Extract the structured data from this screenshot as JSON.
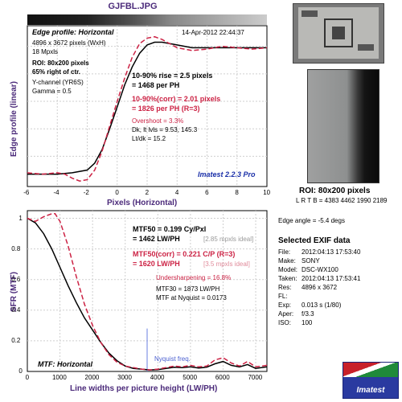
{
  "filename": "GJFBL.JPG",
  "edge": {
    "title": "Edge profile: Horizontal",
    "date": "14-Apr-2012 22:44:37",
    "pixels_info": "4896 x 3672 pixels (WxH)",
    "mpxls": "18 Mpxls",
    "roi": "ROI: 80x200 pixels",
    "roi_pos": "65% right of ctr.",
    "channel": "Y-channel  (YR6S)",
    "gamma": "Gamma = 0.5",
    "rise": "10-90% rise = 2.5 pixels",
    "rise_ph": "= 1468 per PH",
    "rise_corr": "10-90%(corr) = 2.01 pixels",
    "rise_corr_ph": "= 1826 per PH  (R=3)",
    "overshoot": "Overshoot = 3.3%",
    "dk_lt": "Dk, lt lvls = 9.53, 145.3",
    "ltdk": "Lt/dk = 15.2",
    "version": "Imatest 2.2.3 Pro",
    "ylabel": "Edge profile (linear)",
    "xlabel": "Pixels (Horizontal)"
  },
  "mtf": {
    "mtf50": "MTF50 = 0.199  Cy/Pxl",
    "mtf50_lw": "= 1462  LW/PH",
    "mtf50_ideal": "[2.85 mpxls ideal]",
    "mtf50_corr": "MTF50(corr) = 0.221  C/P  (R=3)",
    "mtf50_corr_lw": "= 1620  LW/PH",
    "mtf50_corr_ideal": "[3.5 mpxls ideal]",
    "undersharpening": "Undersharpening = 16.8%",
    "mtf30": "MTF30 = 1873  LW/PH",
    "nyquist_mtf": "MTF at Nyquist = 0.0173",
    "nyquist_label": "Nyquist freq.",
    "title": "MTF: Horizontal",
    "ylabel": "SFR (MTF)",
    "xlabel": "Line widths per picture height (LW/PH)"
  },
  "roi_panel": {
    "title": "ROI: 80x200 pixels",
    "lrtb": "L R T B = 4383 4462  1990 2189",
    "edge_angle": "Edge angle = -5.4 degs"
  },
  "exif": {
    "title": "Selected EXIF data",
    "rows": [
      {
        "label": "File:",
        "value": "2012:04:13 17:53:40"
      },
      {
        "label": "Make:",
        "value": "SONY"
      },
      {
        "label": "Model:",
        "value": "DSC-WX100"
      },
      {
        "label": "Taken:",
        "value": "2012:04:13 17:53:41"
      },
      {
        "label": "Res:",
        "value": "4896 x 3672"
      },
      {
        "label": "FL:",
        "value": ""
      },
      {
        "label": "Exp:",
        "value": "0.013 s  (1/80)"
      },
      {
        "label": "Aper:",
        "value": "f/3.3"
      },
      {
        "label": "ISO:",
        "value": "100"
      }
    ]
  },
  "logo_text": "Imatest",
  "colors": {
    "raw": "#000000",
    "corr": "#cc2244",
    "title": "#4b2a7a",
    "nyquist": "#6a7fe0",
    "version": "#1a2fa8"
  },
  "chart_data": [
    {
      "type": "line",
      "title": "Edge profile: Horizontal",
      "xlabel": "Pixels (Horizontal)",
      "ylabel": "Edge profile (linear)",
      "xlim": [
        -6,
        10
      ],
      "xticks": [
        "-6",
        "-4",
        "-2",
        "0",
        "2",
        "4",
        "6",
        "8",
        "10"
      ],
      "series": [
        {
          "name": "raw",
          "x": [
            -6,
            -5,
            -4,
            -3,
            -2,
            -1.5,
            -1,
            -0.5,
            0,
            0.5,
            1,
            1.5,
            2,
            2.5,
            3,
            4,
            5,
            6,
            7,
            8,
            9,
            10
          ],
          "y": [
            0.07,
            0.07,
            0.07,
            0.08,
            0.1,
            0.15,
            0.25,
            0.4,
            0.56,
            0.72,
            0.85,
            0.95,
            1.01,
            1.03,
            1.03,
            1.01,
            0.99,
            0.99,
            0.99,
            0.99,
            0.99,
            0.99
          ]
        },
        {
          "name": "corr",
          "x": [
            -6,
            -5,
            -4,
            -3.5,
            -3,
            -2.5,
            -2,
            -1.5,
            -1,
            -0.5,
            0,
            0.5,
            1,
            1.5,
            2,
            2.5,
            3,
            4,
            5,
            6,
            7,
            8,
            9,
            10
          ],
          "y": [
            0.08,
            0.07,
            0.08,
            0.07,
            0.04,
            0.02,
            0.03,
            0.1,
            0.24,
            0.42,
            0.6,
            0.77,
            0.92,
            1.02,
            1.06,
            1.07,
            1.05,
            0.99,
            0.97,
            0.98,
            1.0,
            0.99,
            0.98,
            0.99
          ]
        }
      ]
    },
    {
      "type": "line",
      "title": "MTF: Horizontal",
      "xlabel": "Line widths per picture height (LW/PH)",
      "ylabel": "SFR (MTF)",
      "xlim": [
        0,
        7344
      ],
      "ylim": [
        0,
        1.05
      ],
      "xticks": [
        "0",
        "1000",
        "2000",
        "3000",
        "4000",
        "5000",
        "6000",
        "7000"
      ],
      "yticks": [
        "0",
        "0.2",
        "0.4",
        "0.6",
        "0.8",
        "1"
      ],
      "nyquist": 3672,
      "series": [
        {
          "name": "raw",
          "x": [
            0,
            250,
            500,
            750,
            1000,
            1250,
            1500,
            1750,
            2000,
            2250,
            2500,
            2750,
            3000,
            3250,
            3500,
            3750,
            4000,
            4250,
            4500,
            4750,
            5000,
            5250,
            5500,
            5750,
            6000,
            6250,
            6500,
            6750,
            7000,
            7344
          ],
          "y": [
            1.0,
            0.97,
            0.9,
            0.8,
            0.68,
            0.56,
            0.45,
            0.35,
            0.27,
            0.19,
            0.12,
            0.07,
            0.035,
            0.02,
            0.015,
            0.01,
            0.012,
            0.02,
            0.028,
            0.025,
            0.03,
            0.022,
            0.028,
            0.05,
            0.065,
            0.04,
            0.03,
            0.045,
            0.02,
            0.03
          ]
        },
        {
          "name": "corr",
          "x": [
            0,
            250,
            500,
            750,
            850,
            1000,
            1250,
            1500,
            1750,
            2000,
            2250,
            2500,
            2750,
            3000,
            3250,
            3500,
            3750,
            4000,
            4250,
            4500,
            4750,
            5000,
            5250,
            5500,
            5750,
            6000,
            6250,
            6500,
            6750,
            7000,
            7344
          ],
          "y": [
            1.0,
            0.98,
            1.01,
            1.03,
            1.03,
            0.98,
            0.82,
            0.62,
            0.44,
            0.3,
            0.19,
            0.11,
            0.06,
            0.035,
            0.025,
            0.015,
            0.01,
            0.015,
            0.025,
            0.035,
            0.03,
            0.04,
            0.03,
            0.035,
            0.075,
            0.09,
            0.055,
            0.035,
            0.065,
            0.03,
            0.04
          ]
        }
      ]
    }
  ]
}
